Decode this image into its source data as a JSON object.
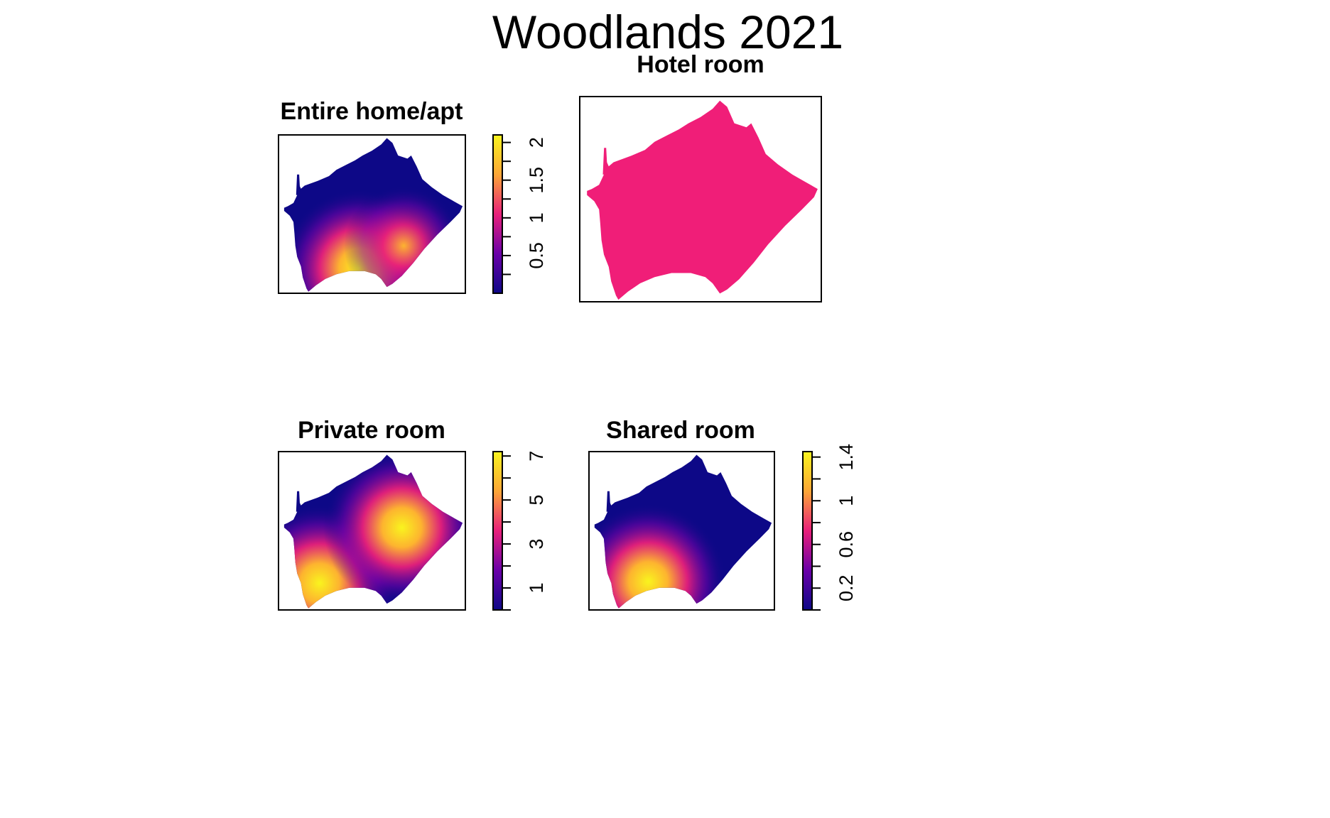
{
  "title": "Woodlands 2021",
  "chart_data": [
    {
      "type": "heatmap",
      "title": "Entire home/apt",
      "legend": {
        "ticks": [
          "0.5",
          "1",
          "1.5",
          "2"
        ],
        "range": [
          0,
          2.1
        ]
      },
      "hotspots": [
        {
          "x": 0.43,
          "y": 0.84,
          "value": 2.1
        },
        {
          "x": 0.67,
          "y": 0.7,
          "value": 1.5
        }
      ]
    },
    {
      "type": "heatmap",
      "title": "Hotel room",
      "legend": {
        "ticks": [],
        "range": [
          1,
          1
        ]
      },
      "fill_color": "#F01E78"
    },
    {
      "type": "heatmap",
      "title": "Private room",
      "legend": {
        "ticks": [
          "1",
          "3",
          "5",
          "7"
        ],
        "range": [
          0,
          7.2
        ]
      },
      "hotspots": [
        {
          "x": 0.22,
          "y": 0.83,
          "value": 7.2
        },
        {
          "x": 0.66,
          "y": 0.48,
          "value": 6.3
        }
      ]
    },
    {
      "type": "heatmap",
      "title": "Shared room",
      "legend": {
        "ticks": [
          "0.2",
          "0.6",
          "1",
          "1.4"
        ],
        "range": [
          0,
          1.45
        ]
      },
      "hotspots": [
        {
          "x": 0.32,
          "y": 0.82,
          "value": 1.45
        }
      ]
    }
  ],
  "colors": {
    "low": "#0D0887",
    "mid": "#E8207A",
    "high": "#F9F41E"
  }
}
